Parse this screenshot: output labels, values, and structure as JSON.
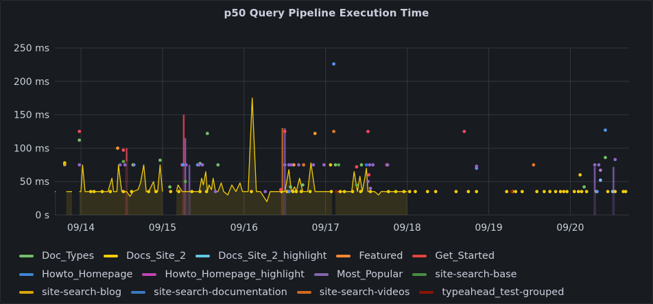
{
  "panel": {
    "title": "p50 Query Pipeline Execution Time"
  },
  "chart_data": {
    "type": "line",
    "title": "p50 Query Pipeline Execution Time",
    "xlabel": "",
    "ylabel": "",
    "x_unit": "days since 09/13 00:00",
    "xlim": [
      0.68,
      7.72
    ],
    "ylim": [
      0,
      250
    ],
    "y_ticks": [
      {
        "value": 0,
        "label": "0 s"
      },
      {
        "value": 50,
        "label": "50 ms"
      },
      {
        "value": 100,
        "label": "100 ms"
      },
      {
        "value": 150,
        "label": "150 ms"
      },
      {
        "value": 200,
        "label": "200 ms"
      },
      {
        "value": 250,
        "label": "250 ms"
      }
    ],
    "x_ticks": [
      {
        "value": 1,
        "label": "09/14"
      },
      {
        "value": 2,
        "label": "09/15"
      },
      {
        "value": 3,
        "label": "09/16"
      },
      {
        "value": 4,
        "label": "09/17"
      },
      {
        "value": 5,
        "label": "09/18"
      },
      {
        "value": 6,
        "label": "09/19"
      },
      {
        "value": 7,
        "label": "09/20"
      }
    ],
    "grid": true,
    "legend_position": "bottom",
    "series": [
      {
        "name": "Doc_Types",
        "color": "#73bf69",
        "style": "points",
        "points": [
          [
            0.98,
            112
          ],
          [
            1.97,
            82
          ],
          [
            2.09,
            42
          ],
          [
            2.46,
            77
          ],
          [
            2.55,
            122
          ],
          [
            2.68,
            75
          ],
          [
            3.57,
            42
          ],
          [
            3.72,
            45
          ],
          [
            4.12,
            75
          ],
          [
            4.44,
            75
          ],
          [
            7.17,
            42
          ],
          [
            7.43,
            86
          ]
        ]
      },
      {
        "name": "Docs_Site_2",
        "color": "#f2cc0c",
        "style": "line-fill",
        "segments": [
          [
            [
              0.68,
              35
            ],
            [
              0.69,
              35
            ]
          ],
          [
            [
              0.82,
              35
            ],
            [
              0.86,
              35
            ],
            [
              0.89,
              35
            ]
          ],
          [
            [
              0.98,
              35
            ],
            [
              1.0,
              35
            ],
            [
              1.02,
              75
            ],
            [
              1.05,
              35
            ],
            [
              1.1,
              35
            ],
            [
              1.18,
              35
            ],
            [
              1.21,
              35
            ],
            [
              1.27,
              35
            ],
            [
              1.3,
              35
            ],
            [
              1.33,
              35
            ],
            [
              1.38,
              55
            ],
            [
              1.4,
              35
            ],
            [
              1.44,
              35
            ],
            [
              1.46,
              75
            ],
            [
              1.5,
              35
            ],
            [
              1.56,
              35
            ],
            [
              1.6,
              28
            ],
            [
              1.64,
              35
            ],
            [
              1.7,
              38
            ],
            [
              1.73,
              48
            ],
            [
              1.77,
              75
            ],
            [
              1.8,
              35
            ],
            [
              1.83,
              35
            ],
            [
              1.89,
              50
            ],
            [
              1.91,
              35
            ],
            [
              1.94,
              35
            ],
            [
              1.97,
              75
            ],
            [
              2.0,
              35
            ]
          ],
          [
            [
              2.17,
              35
            ],
            [
              2.19,
              45
            ],
            [
              2.24,
              35
            ],
            [
              2.26,
              35
            ],
            [
              2.3,
              35
            ],
            [
              2.34,
              35
            ],
            [
              2.38,
              35
            ],
            [
              2.41,
              35
            ],
            [
              2.45,
              35
            ],
            [
              2.48,
              55
            ],
            [
              2.5,
              45
            ],
            [
              2.53,
              65
            ],
            [
              2.55,
              35
            ],
            [
              2.57,
              45
            ],
            [
              2.6,
              38
            ],
            [
              2.62,
              55
            ],
            [
              2.65,
              35
            ],
            [
              2.68,
              35
            ],
            [
              2.72,
              48
            ],
            [
              2.75,
              35
            ],
            [
              2.8,
              30
            ],
            [
              2.85,
              45
            ],
            [
              2.9,
              35
            ],
            [
              2.95,
              48
            ],
            [
              2.98,
              35
            ],
            [
              3.05,
              35
            ]
          ],
          [
            [
              3.05,
              35
            ],
            [
              3.1,
              175
            ],
            [
              3.15,
              35
            ],
            [
              3.2,
              35
            ],
            [
              3.28,
              20
            ],
            [
              3.32,
              35
            ],
            [
              3.38,
              35
            ],
            [
              3.44,
              35
            ],
            [
              3.5,
              35
            ],
            [
              3.55,
              68
            ],
            [
              3.58,
              35
            ],
            [
              3.62,
              42
            ],
            [
              3.64,
              35
            ],
            [
              3.68,
              55
            ],
            [
              3.72,
              35
            ],
            [
              3.76,
              35
            ],
            [
              3.78,
              35
            ],
            [
              3.82,
              78
            ],
            [
              3.87,
              35
            ],
            [
              3.94,
              35
            ],
            [
              3.98,
              35
            ],
            [
              4.05,
              35
            ],
            [
              4.08,
              35
            ]
          ],
          [
            [
              4.12,
              35
            ],
            [
              4.18,
              35
            ],
            [
              4.23,
              35
            ],
            [
              4.26,
              35
            ],
            [
              4.3,
              35
            ],
            [
              4.32,
              35
            ],
            [
              4.35,
              65
            ],
            [
              4.39,
              35
            ],
            [
              4.42,
              58
            ],
            [
              4.45,
              35
            ],
            [
              4.48,
              55
            ],
            [
              4.5,
              70
            ],
            [
              4.52,
              35
            ],
            [
              4.56,
              35
            ],
            [
              4.6,
              35
            ],
            [
              4.65,
              30
            ],
            [
              4.68,
              35
            ],
            [
              4.72,
              35
            ],
            [
              4.78,
              35
            ],
            [
              4.82,
              35
            ],
            [
              4.85,
              35
            ],
            [
              4.87,
              35
            ],
            [
              4.9,
              35
            ],
            [
              4.95,
              35
            ],
            [
              5.0,
              35
            ]
          ]
        ],
        "points": [
          [
            1.12,
            35
          ],
          [
            1.16,
            35
          ],
          [
            1.26,
            35
          ],
          [
            1.36,
            35
          ],
          [
            1.52,
            35
          ],
          [
            1.62,
            35
          ],
          [
            1.83,
            35
          ],
          [
            1.92,
            35
          ],
          [
            2.1,
            35
          ],
          [
            2.2,
            35
          ],
          [
            2.36,
            35
          ],
          [
            2.46,
            35
          ],
          [
            2.54,
            35
          ],
          [
            3.09,
            35
          ],
          [
            3.46,
            35
          ],
          [
            3.53,
            35
          ],
          [
            3.6,
            35
          ],
          [
            3.64,
            35
          ],
          [
            3.7,
            35
          ],
          [
            3.81,
            35
          ],
          [
            4.07,
            35
          ],
          [
            4.18,
            35
          ],
          [
            4.23,
            35
          ],
          [
            4.33,
            35
          ],
          [
            4.43,
            35
          ],
          [
            4.55,
            35
          ],
          [
            4.77,
            35
          ],
          [
            4.86,
            35
          ],
          [
            4.96,
            35
          ],
          [
            5.03,
            35
          ],
          [
            5.1,
            35
          ],
          [
            5.25,
            35
          ],
          [
            5.35,
            35
          ],
          [
            5.6,
            35
          ],
          [
            5.75,
            35
          ],
          [
            5.85,
            35
          ],
          [
            6.22,
            35
          ],
          [
            6.29,
            35
          ],
          [
            6.33,
            35
          ],
          [
            6.41,
            35
          ],
          [
            6.59,
            35
          ],
          [
            6.68,
            35
          ],
          [
            6.75,
            35
          ],
          [
            6.82,
            35
          ],
          [
            6.88,
            35
          ],
          [
            6.92,
            35
          ],
          [
            6.96,
            35
          ],
          [
            7.05,
            35
          ],
          [
            7.1,
            35
          ],
          [
            7.14,
            35
          ],
          [
            7.2,
            35
          ],
          [
            7.32,
            35
          ],
          [
            7.46,
            35
          ],
          [
            7.55,
            35
          ],
          [
            7.65,
            35
          ],
          [
            7.68,
            35
          ]
        ],
        "extra_points": [
          [
            0.8,
            78
          ],
          [
            1.64,
            75
          ],
          [
            4.06,
            75
          ],
          [
            7.12,
            60
          ]
        ]
      },
      {
        "name": "Docs_Site_2_highlight",
        "color": "#8ab8ff",
        "style": "points",
        "points": [
          [
            7.37,
            52
          ],
          [
            7.52,
            35
          ]
        ]
      },
      {
        "name": "Featured",
        "color": "#ff9830",
        "style": "points",
        "points": [
          [
            1.45,
            100
          ],
          [
            3.61,
            75
          ],
          [
            3.87,
            122
          ]
        ]
      },
      {
        "name": "Get_Started",
        "color": "#f2495c",
        "style": "points",
        "points": [
          [
            0.98,
            125
          ],
          [
            1.52,
            97
          ],
          [
            2.24,
            75
          ],
          [
            3.5,
            125
          ],
          [
            3.45,
            38
          ],
          [
            4.52,
            125
          ],
          [
            4.53,
            60
          ],
          [
            5.7,
            125
          ],
          [
            4.38,
            72
          ],
          [
            4.75,
            75
          ]
        ],
        "spikes": [
          [
            1.56,
            80,
            100
          ],
          [
            2.26,
            75,
            150
          ]
        ]
      },
      {
        "name": "Howto_Homepage",
        "color": "#5794f2",
        "style": "points",
        "points": [
          [
            1.65,
            75
          ],
          [
            2.25,
            75
          ],
          [
            2.43,
            75
          ],
          [
            3.55,
            35
          ],
          [
            4.1,
            226
          ],
          [
            5.85,
            70
          ],
          [
            7.43,
            127
          ],
          [
            7.33,
            35
          ]
        ]
      },
      {
        "name": "Howto_Homepage_highlight",
        "color": "#b877d9",
        "style": "points",
        "points": [
          [
            7.37,
            67
          ]
        ]
      },
      {
        "name": "Most_Popular",
        "color": "#8f66cc",
        "style": "points",
        "points": [
          [
            0.8,
            75
          ],
          [
            0.98,
            75
          ],
          [
            1.48,
            75
          ],
          [
            1.54,
            75
          ],
          [
            2.29,
            75
          ],
          [
            2.45,
            75
          ],
          [
            2.49,
            75
          ],
          [
            2.65,
            35
          ],
          [
            3.26,
            35
          ],
          [
            3.5,
            75
          ],
          [
            3.55,
            75
          ],
          [
            3.58,
            75
          ],
          [
            3.67,
            75
          ],
          [
            3.85,
            75
          ],
          [
            3.98,
            75
          ],
          [
            4.54,
            75
          ],
          [
            4.58,
            75
          ],
          [
            4.76,
            75
          ],
          [
            4.52,
            50
          ],
          [
            4.55,
            40
          ],
          [
            5.85,
            73
          ],
          [
            7.3,
            75
          ],
          [
            7.35,
            75
          ],
          [
            7.55,
            83
          ]
        ],
        "spikes": [
          [
            2.28,
            35,
            115
          ],
          [
            2.33,
            35,
            75
          ],
          [
            3.5,
            35,
            130
          ],
          [
            7.3,
            35,
            72
          ],
          [
            7.53,
            35,
            72
          ]
        ]
      },
      {
        "name": "site-search-base",
        "color": "#56a64b",
        "style": "points",
        "points": [
          [
            1.52,
            80
          ],
          [
            2.28,
            50
          ],
          [
            4.16,
            75
          ],
          [
            4.38,
            45
          ]
        ]
      },
      {
        "name": "site-search-blog",
        "color": "#e0b400",
        "style": "points",
        "points": [
          [
            0.8,
            76
          ]
        ]
      },
      {
        "name": "site-search-documentation",
        "color": "#3274d9",
        "style": "points",
        "points": [
          [
            4.5,
            75
          ]
        ]
      },
      {
        "name": "site-search-videos",
        "color": "#e0752d",
        "style": "points",
        "points": [
          [
            4.1,
            125
          ],
          [
            3.73,
            75
          ],
          [
            6.55,
            75
          ]
        ],
        "spikes": [
          [
            3.47,
            35,
            130
          ]
        ]
      },
      {
        "name": "typeahead_test-grouped",
        "color": "#8f1a06",
        "style": "points",
        "points": [
          [
            4.13,
            35
          ],
          [
            6.28,
            35
          ]
        ]
      }
    ]
  },
  "legend": {
    "rows": [
      [
        {
          "label": "Doc_Types",
          "color": "#73bf69"
        },
        {
          "label": "Docs_Site_2",
          "color": "#f2cc0c"
        },
        {
          "label": "Docs_Site_2_highlight",
          "color": "#5fc8e0"
        },
        {
          "label": "Featured",
          "color": "#ff8833"
        },
        {
          "label": "Get_Started",
          "color": "#e0453c"
        }
      ],
      [
        {
          "label": "Howto_Homepage",
          "color": "#3e86d4"
        },
        {
          "label": "Howto_Homepage_highlight",
          "color": "#c145b5"
        },
        {
          "label": "Most_Popular",
          "color": "#8466b0"
        },
        {
          "label": "site-search-base",
          "color": "#4a8d43"
        }
      ],
      [
        {
          "label": "site-search-blog",
          "color": "#d9a50c"
        },
        {
          "label": "site-search-documentation",
          "color": "#3a79c4"
        },
        {
          "label": "site-search-videos",
          "color": "#d1691f"
        },
        {
          "label": "typeahead_test-grouped",
          "color": "#8a1405"
        }
      ]
    ]
  }
}
